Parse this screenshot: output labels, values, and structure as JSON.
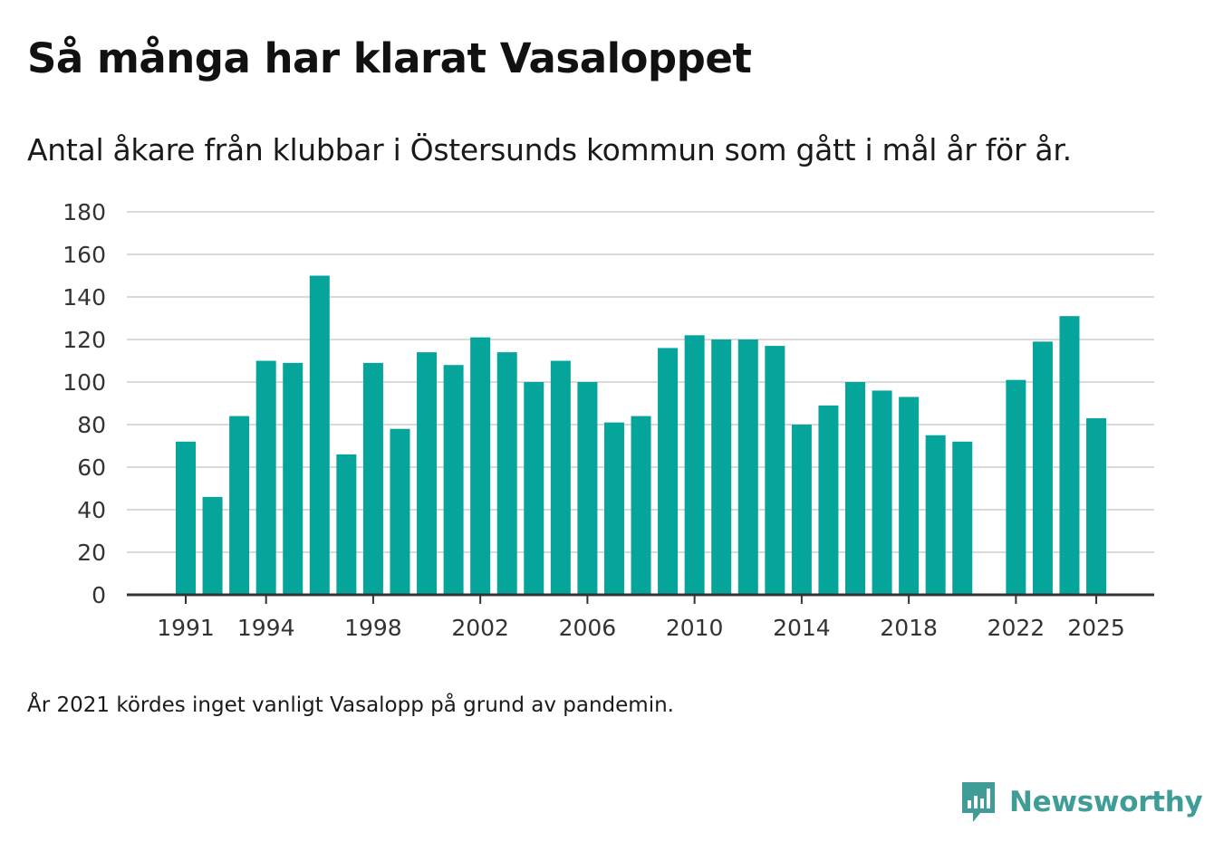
{
  "title": "Så många har klarat Vasaloppet",
  "subtitle": "Antal åkare från klubbar i Östersunds kommun som gått i mål år för år.",
  "footnote": "År 2021 kördes inget vanligt Vasalopp på grund av pandemin.",
  "brand": {
    "name": "Newsworthy",
    "icon": "newsworthy-logo-icon",
    "color": "#3f9c97"
  },
  "colors": {
    "bar": "#06a59c",
    "grid": "#d9d9d9",
    "axis": "#333333"
  },
  "chart_data": {
    "type": "bar",
    "title": "Så många har klarat Vasaloppet",
    "xlabel": "",
    "ylabel": "",
    "ylim": [
      0,
      180
    ],
    "yticks": [
      0,
      20,
      40,
      60,
      80,
      100,
      120,
      140,
      160,
      180
    ],
    "xticks": [
      1991,
      1994,
      1998,
      2002,
      2006,
      2010,
      2014,
      2018,
      2022,
      2025
    ],
    "grid": true,
    "categories": [
      1991,
      1992,
      1993,
      1994,
      1995,
      1996,
      1997,
      1998,
      1999,
      2000,
      2001,
      2002,
      2003,
      2004,
      2005,
      2006,
      2007,
      2008,
      2009,
      2010,
      2011,
      2012,
      2013,
      2014,
      2015,
      2016,
      2017,
      2018,
      2019,
      2020,
      2021,
      2022,
      2023,
      2024,
      2025
    ],
    "values": [
      72,
      46,
      84,
      110,
      109,
      150,
      66,
      109,
      78,
      114,
      108,
      121,
      114,
      100,
      110,
      100,
      81,
      84,
      116,
      122,
      120,
      120,
      117,
      80,
      89,
      100,
      96,
      93,
      75,
      72,
      null,
      101,
      119,
      131,
      83
    ]
  }
}
